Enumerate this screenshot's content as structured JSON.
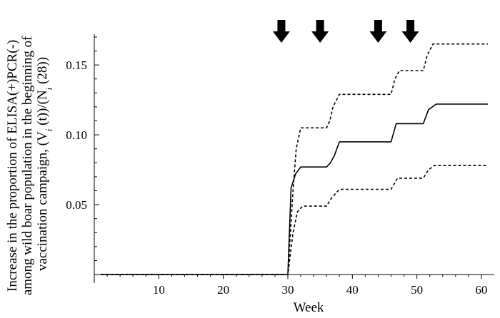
{
  "chart_data": {
    "type": "line",
    "xlabel": "Week",
    "ylabel": "Increase in the proportion of ELISA(+)PCR(-) among wild boar population in the beginning of vaccination campaign, (V_i (t))/(N_i (28))",
    "ylabel_lines": [
      "Increase in the proportion of ELISA(+)PCR(-)",
      "among wild boar population in the beginning of",
      "vaccination campaign, (V",
      "i",
      " (t))/(N",
      "i",
      " (28))"
    ],
    "xlim": [
      0,
      62
    ],
    "ylim": [
      -0.002,
      0.172
    ],
    "x_ticks": [
      10,
      20,
      30,
      40,
      50,
      60
    ],
    "y_ticks": [
      0.05,
      0.1,
      0.15
    ],
    "x_tick_labels": [
      "10",
      "20",
      "30",
      "40",
      "50",
      "60"
    ],
    "y_tick_labels": [
      "0.05",
      "0.10",
      "0.15"
    ],
    "grid": false,
    "vaccination_arrows_at_week": [
      29,
      35,
      44,
      49
    ],
    "series": [
      {
        "style": "dashed",
        "points": [
          [
            1,
            0
          ],
          [
            30,
            0
          ],
          [
            30.4,
            0.03
          ],
          [
            30.8,
            0.06
          ],
          [
            31.3,
            0.09
          ],
          [
            32,
            0.105
          ],
          [
            36,
            0.105
          ],
          [
            36.5,
            0.11
          ],
          [
            37,
            0.12
          ],
          [
            38,
            0.129
          ],
          [
            46,
            0.129
          ],
          [
            46.6,
            0.14
          ],
          [
            47.3,
            0.146
          ],
          [
            51,
            0.146
          ],
          [
            51.6,
            0.157
          ],
          [
            52.5,
            0.165
          ],
          [
            61,
            0.165
          ]
        ]
      },
      {
        "style": "solid",
        "points": [
          [
            1,
            0
          ],
          [
            30,
            0
          ],
          [
            30.5,
            0.062
          ],
          [
            31.2,
            0.072
          ],
          [
            32,
            0.077
          ],
          [
            36,
            0.077
          ],
          [
            36.6,
            0.08
          ],
          [
            37.2,
            0.085
          ],
          [
            38,
            0.095
          ],
          [
            46,
            0.095
          ],
          [
            46.8,
            0.108
          ],
          [
            51,
            0.108
          ],
          [
            51.8,
            0.118
          ],
          [
            53,
            0.122
          ],
          [
            61,
            0.122
          ]
        ]
      },
      {
        "style": "dashed",
        "points": [
          [
            1,
            0
          ],
          [
            30,
            0
          ],
          [
            30.4,
            0.015
          ],
          [
            30.8,
            0.03
          ],
          [
            31.5,
            0.045
          ],
          [
            32.3,
            0.049
          ],
          [
            36,
            0.049
          ],
          [
            36.8,
            0.055
          ],
          [
            38,
            0.061
          ],
          [
            46,
            0.061
          ],
          [
            47,
            0.069
          ],
          [
            51,
            0.069
          ],
          [
            51.8,
            0.075
          ],
          [
            52.7,
            0.078
          ],
          [
            61,
            0.078
          ]
        ]
      }
    ]
  }
}
